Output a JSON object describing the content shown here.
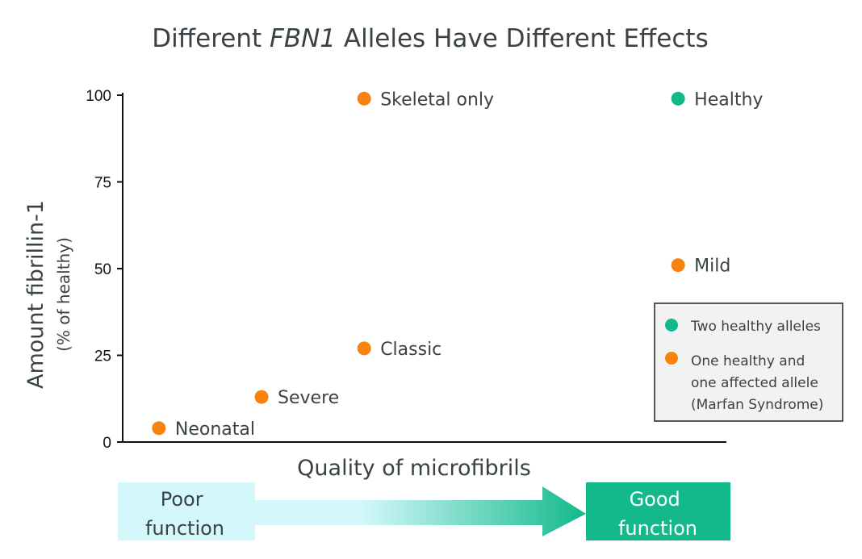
{
  "title": {
    "prefix": "Different ",
    "gene": "FBN1",
    "suffix": " Alleles Have Different Effects"
  },
  "colors": {
    "healthy": "#13b98b",
    "affected": "#f7830e",
    "text": "#3a4246",
    "poor_band": "#d3f7fa",
    "good_band": "#13b98b",
    "legend_bg": "#f2f2f2"
  },
  "chart_data": {
    "type": "scatter",
    "title": "Different FBN1 Alleles Have Different Effects",
    "xlabel": "Quality of microfibrils",
    "ylabel": "Amount fibrillin-1",
    "ylabel_sub": "(% of healthy)",
    "ylim": [
      0,
      100
    ],
    "yticks": [
      0,
      25,
      50,
      75,
      100
    ],
    "x_scale": "poor function → good function (no numeric ticks)",
    "series": [
      {
        "name": "Two healthy alleles",
        "color": "#13b98b",
        "points": [
          {
            "label": "Healthy",
            "x": 0.92,
            "y": 99
          }
        ]
      },
      {
        "name": "One healthy and one affected allele (Marfan Syndrome)",
        "color": "#f7830e",
        "points": [
          {
            "label": "Skeletal only",
            "x": 0.4,
            "y": 99
          },
          {
            "label": "Mild",
            "x": 0.92,
            "y": 51
          },
          {
            "label": "Classic",
            "x": 0.4,
            "y": 27
          },
          {
            "label": "Severe",
            "x": 0.23,
            "y": 13
          },
          {
            "label": "Neonatal",
            "x": 0.06,
            "y": 4
          }
        ]
      }
    ],
    "legend": {
      "placement": "right",
      "entries": [
        {
          "lines": [
            "Two healthy alleles"
          ],
          "color": "#13b98b"
        },
        {
          "lines": [
            "One healthy and",
            "one affected allele",
            "(Marfan Syndrome)"
          ],
          "color": "#f7830e"
        }
      ]
    },
    "grid": false
  },
  "function_scale": {
    "poor": [
      "Poor",
      "function"
    ],
    "good": [
      "Good",
      "function"
    ]
  }
}
